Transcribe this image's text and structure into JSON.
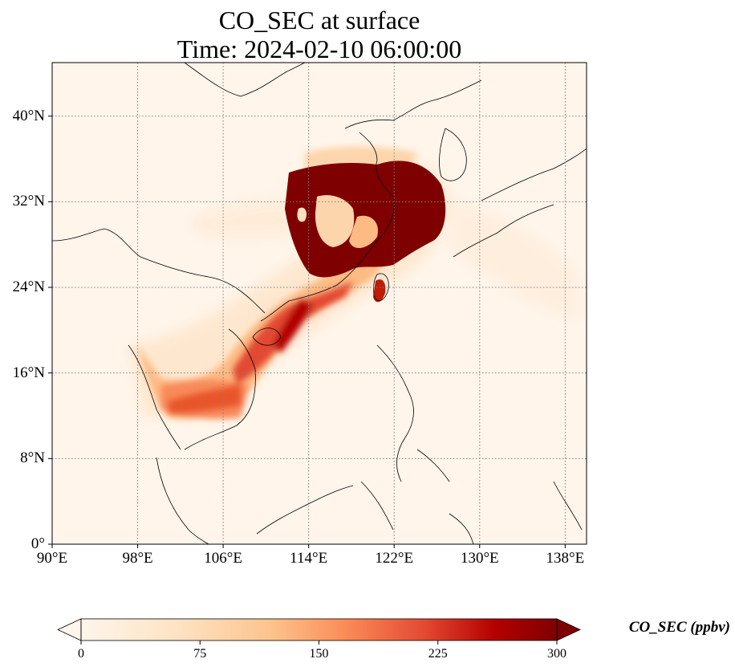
{
  "title": {
    "line1": "CO_SEC at surface",
    "line2": "Time: 2024-02-10 06:00:00"
  },
  "map": {
    "lon_range": [
      90,
      140
    ],
    "lat_range": [
      0,
      45
    ],
    "grid": true,
    "lat_ticks": [
      {
        "value": 40,
        "label": "40°N"
      },
      {
        "value": 32,
        "label": "32°N"
      },
      {
        "value": 24,
        "label": "24°N"
      },
      {
        "value": 16,
        "label": "16°N"
      },
      {
        "value": 8,
        "label": "8°N"
      },
      {
        "value": 0,
        "label": "0°"
      }
    ],
    "lon_ticks": [
      {
        "value": 90,
        "label": "90°E"
      },
      {
        "value": 98,
        "label": "98°E"
      },
      {
        "value": 106,
        "label": "106°E"
      },
      {
        "value": 114,
        "label": "114°E"
      },
      {
        "value": 122,
        "label": "122°E"
      },
      {
        "value": 130,
        "label": "130°E"
      },
      {
        "value": 138,
        "label": "138°E"
      }
    ],
    "background_color": "#fff5eb",
    "land_lines_color": "#000000"
  },
  "colorbar": {
    "label": "CO_SEC (ppbv)",
    "min": 0,
    "max": 300,
    "ticks": [
      {
        "value": 0,
        "label": "0"
      },
      {
        "value": 75,
        "label": "75"
      },
      {
        "value": 150,
        "label": "150"
      },
      {
        "value": 225,
        "label": "225"
      },
      {
        "value": 300,
        "label": "300"
      }
    ],
    "colormap": "OrRd",
    "colors": [
      "#fff5eb",
      "#fdd09f",
      "#fd9a50",
      "#e8552a",
      "#c01c08",
      "#7f0000"
    ],
    "extend": "both"
  }
}
